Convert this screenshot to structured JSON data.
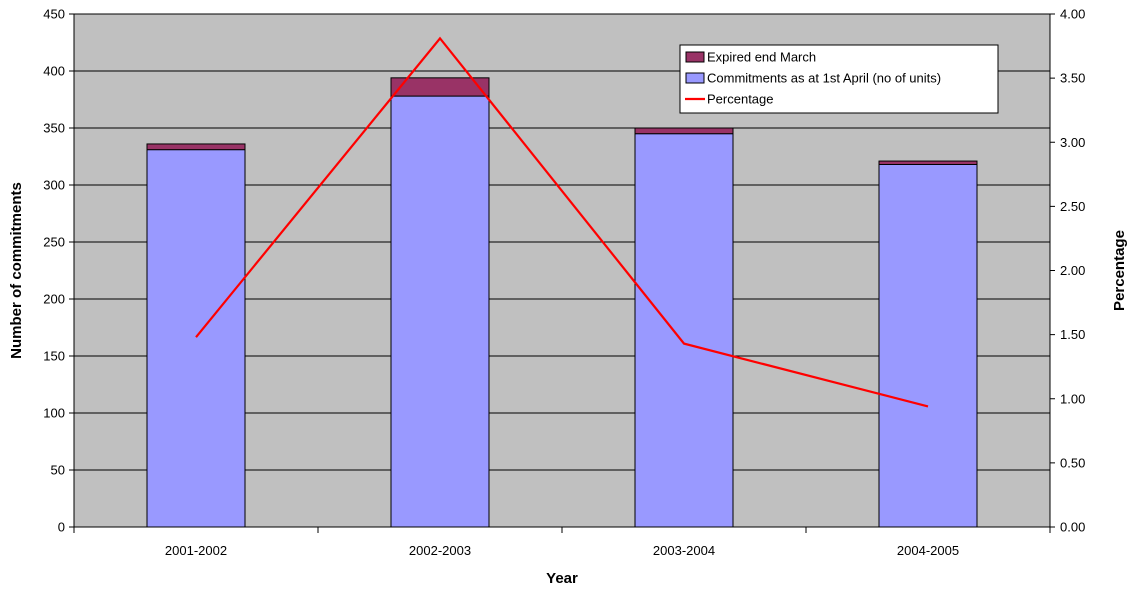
{
  "chart_data": {
    "type": "bar",
    "stacked": true,
    "categories": [
      "2001-2002",
      "2002-2003",
      "2003-2004",
      "2004-2005"
    ],
    "series": [
      {
        "name": "Commitments as at 1st April (no of units)",
        "kind": "bar",
        "axis": "left",
        "color": "#9999ff",
        "values": [
          331,
          378,
          345,
          318
        ]
      },
      {
        "name": "Expired end March",
        "kind": "bar",
        "axis": "left",
        "color": "#993366",
        "values": [
          5,
          16,
          5,
          3
        ]
      },
      {
        "name": "Percentage",
        "kind": "line",
        "axis": "right",
        "color": "#ff0000",
        "values": [
          1.48,
          3.81,
          1.43,
          0.94
        ]
      }
    ],
    "xlabel": "Year",
    "ylabel": "Number of commitments",
    "y2label": "Percentage",
    "ylim": [
      0,
      450
    ],
    "yticks": [
      "0",
      "50",
      "100",
      "150",
      "200",
      "250",
      "300",
      "350",
      "400",
      "450"
    ],
    "y2lim": [
      0,
      4
    ],
    "y2ticks": [
      "0.00",
      "0.50",
      "1.00",
      "1.50",
      "2.00",
      "2.50",
      "3.00",
      "3.50",
      "4.00"
    ],
    "grid": true,
    "plot_background": "#c0c0c0",
    "legend_position": "top-right",
    "legend": [
      {
        "label": "Expired end March",
        "swatch": "box",
        "color": "#993366"
      },
      {
        "label": "Commitments as at 1st April (no of units)",
        "swatch": "box",
        "color": "#9999ff"
      },
      {
        "label": "Percentage",
        "swatch": "line",
        "color": "#ff0000"
      }
    ]
  }
}
